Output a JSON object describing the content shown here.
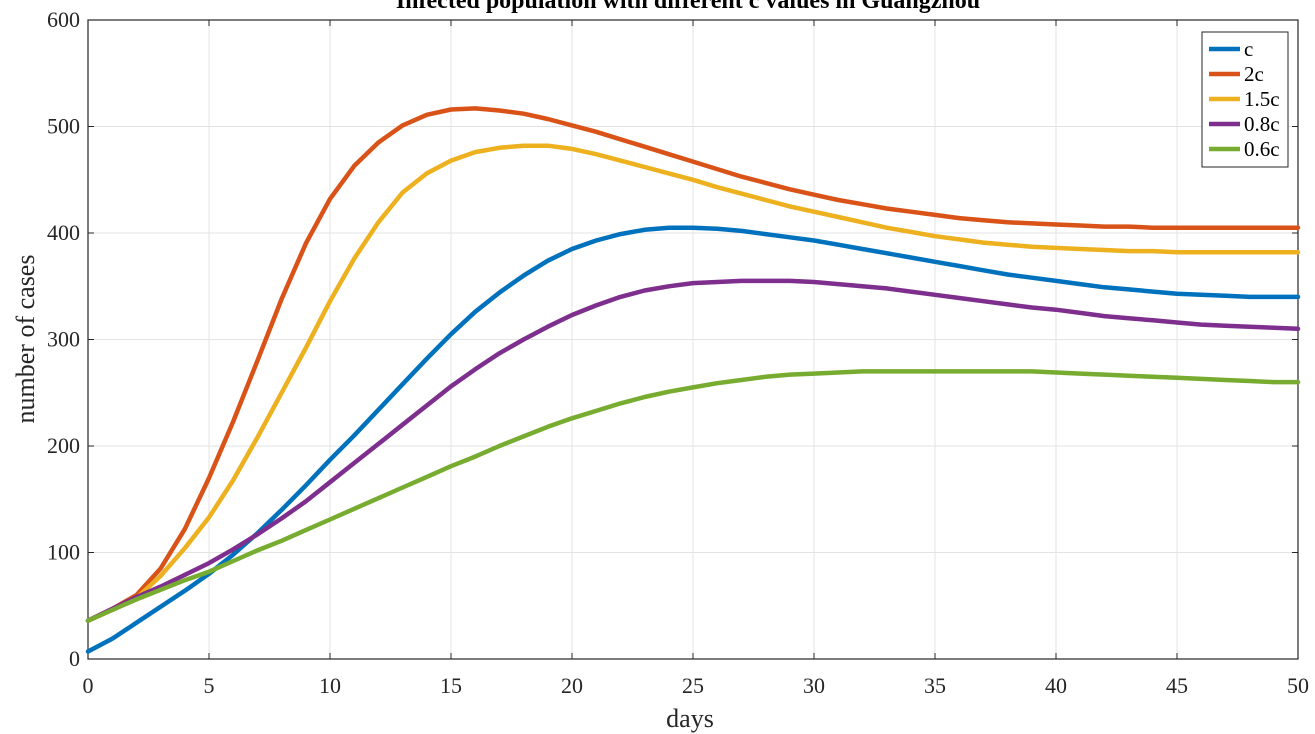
{
  "chart_data": {
    "type": "line",
    "title": "Infected population with different c values in Guangzhou",
    "xlabel": "days",
    "ylabel": "number of cases",
    "xlim": [
      0,
      50
    ],
    "ylim": [
      0,
      600
    ],
    "xticks": [
      "0",
      "5",
      "10",
      "15",
      "20",
      "25",
      "30",
      "35",
      "40",
      "45",
      "50"
    ],
    "yticks": [
      "0",
      "100",
      "200",
      "300",
      "400",
      "500",
      "600"
    ],
    "grid": true,
    "legend_position": "top-right",
    "x": [
      0,
      1,
      2,
      3,
      4,
      5,
      6,
      7,
      8,
      9,
      10,
      11,
      12,
      13,
      14,
      15,
      16,
      17,
      18,
      19,
      20,
      21,
      22,
      23,
      24,
      25,
      26,
      27,
      28,
      29,
      30,
      31,
      32,
      33,
      34,
      35,
      36,
      37,
      38,
      39,
      40,
      41,
      42,
      43,
      44,
      45,
      46,
      47,
      48,
      49,
      50
    ],
    "series": [
      {
        "name": "c",
        "color": "#0072BD",
        "values": [
          7,
          19,
          34,
          49,
          64,
          80,
          98,
          118,
          140,
          163,
          187,
          210,
          234,
          258,
          282,
          305,
          326,
          344,
          360,
          374,
          385,
          393,
          399,
          403,
          405,
          405,
          404,
          402,
          399,
          396,
          393,
          389,
          385,
          381,
          377,
          373,
          369,
          365,
          361,
          358,
          355,
          352,
          349,
          347,
          345,
          343,
          342,
          341,
          340,
          340,
          340
        ]
      },
      {
        "name": "2c",
        "color": "#D95319",
        "values": [
          36,
          47,
          60,
          85,
          122,
          170,
          223,
          280,
          338,
          390,
          432,
          463,
          485,
          501,
          511,
          516,
          517,
          515,
          512,
          507,
          501,
          495,
          488,
          481,
          474,
          467,
          460,
          453,
          447,
          441,
          436,
          431,
          427,
          423,
          420,
          417,
          414,
          412,
          410,
          409,
          408,
          407,
          406,
          406,
          405,
          405,
          405,
          405,
          405,
          405,
          405
        ]
      },
      {
        "name": "1.5c",
        "color": "#EDB120",
        "values": [
          36,
          46,
          57,
          78,
          104,
          133,
          168,
          208,
          250,
          292,
          336,
          376,
          410,
          438,
          456,
          468,
          476,
          480,
          482,
          482,
          479,
          474,
          468,
          462,
          456,
          450,
          443,
          437,
          431,
          425,
          420,
          415,
          410,
          405,
          401,
          397,
          394,
          391,
          389,
          387,
          386,
          385,
          384,
          383,
          383,
          382,
          382,
          382,
          382,
          382,
          382
        ]
      },
      {
        "name": "0.8c",
        "color": "#7E2F8E",
        "values": [
          36,
          47,
          58,
          68,
          79,
          90,
          103,
          117,
          132,
          148,
          166,
          184,
          202,
          220,
          238,
          256,
          272,
          287,
          300,
          312,
          323,
          332,
          340,
          346,
          350,
          353,
          354,
          355,
          355,
          355,
          354,
          352,
          350,
          348,
          345,
          342,
          339,
          336,
          333,
          330,
          328,
          325,
          322,
          320,
          318,
          316,
          314,
          313,
          312,
          311,
          310
        ]
      },
      {
        "name": "0.6c",
        "color": "#77AC30",
        "values": [
          36,
          46,
          56,
          65,
          74,
          82,
          92,
          102,
          111,
          121,
          131,
          141,
          151,
          161,
          171,
          181,
          190,
          200,
          209,
          218,
          226,
          233,
          240,
          246,
          251,
          255,
          259,
          262,
          265,
          267,
          268,
          269,
          270,
          270,
          270,
          270,
          270,
          270,
          270,
          270,
          269,
          268,
          267,
          266,
          265,
          264,
          263,
          262,
          261,
          260,
          260
        ]
      }
    ]
  }
}
